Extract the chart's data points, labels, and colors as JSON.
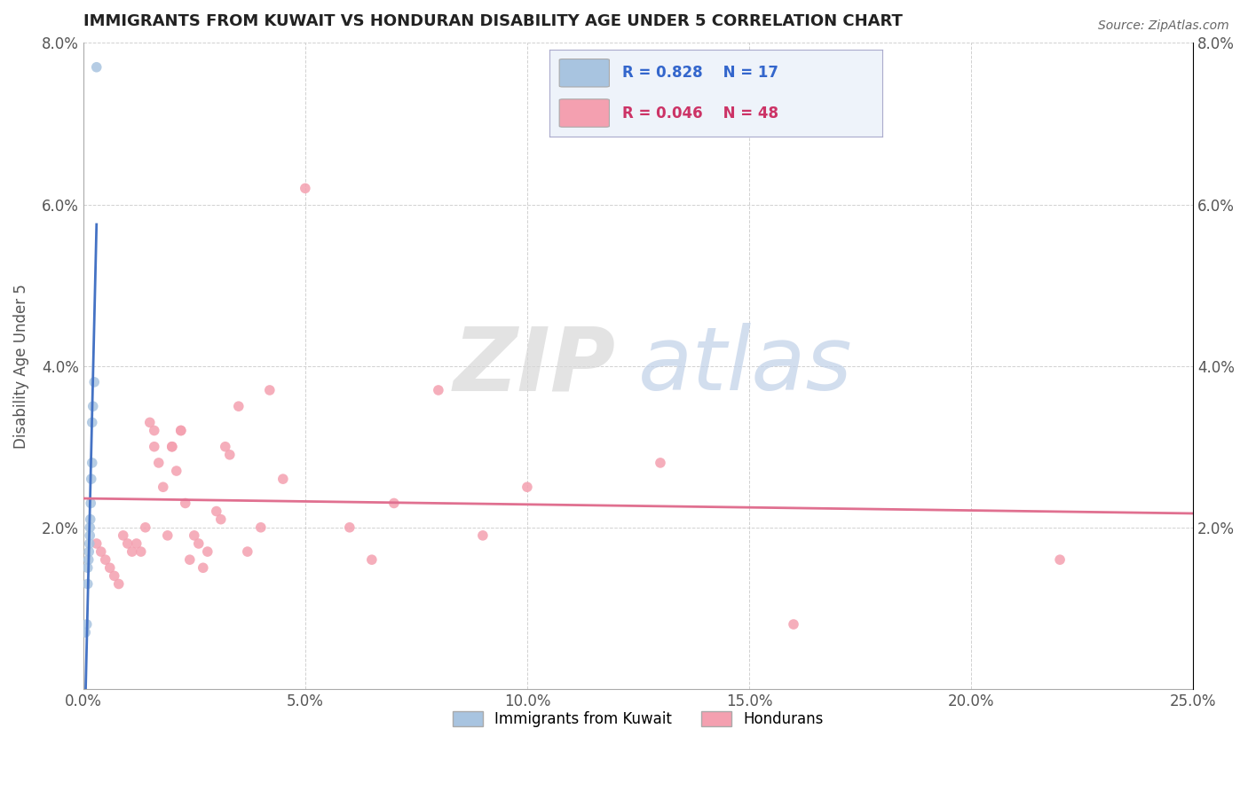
{
  "title": "IMMIGRANTS FROM KUWAIT VS HONDURAN DISABILITY AGE UNDER 5 CORRELATION CHART",
  "source": "Source: ZipAtlas.com",
  "ylabel": "Disability Age Under 5",
  "xmin": 0.0,
  "xmax": 0.25,
  "ymin": 0.0,
  "ymax": 0.08,
  "xticks": [
    0.0,
    0.05,
    0.1,
    0.15,
    0.2,
    0.25
  ],
  "xticklabels": [
    "0.0%",
    "5.0%",
    "10.0%",
    "15.0%",
    "20.0%",
    "25.0%"
  ],
  "yticks": [
    0.0,
    0.02,
    0.04,
    0.06,
    0.08
  ],
  "yticklabels_left": [
    "",
    "2.0%",
    "4.0%",
    "6.0%",
    "8.0%"
  ],
  "yticklabels_right": [
    "",
    "2.0%",
    "4.0%",
    "6.0%",
    "8.0%"
  ],
  "kuwait_R": 0.828,
  "kuwait_N": 17,
  "honduran_R": 0.046,
  "honduran_N": 48,
  "kuwait_color": "#a8c4e0",
  "honduran_color": "#f4a0b0",
  "kuwait_line_color": "#4472c4",
  "honduran_line_color": "#e07090",
  "kuwait_x": [
    0.0005,
    0.0008,
    0.001,
    0.001,
    0.0012,
    0.0013,
    0.0014,
    0.0015,
    0.0015,
    0.0016,
    0.0017,
    0.0018,
    0.002,
    0.002,
    0.0022,
    0.0025,
    0.003
  ],
  "kuwait_y": [
    0.007,
    0.008,
    0.013,
    0.015,
    0.016,
    0.017,
    0.018,
    0.019,
    0.02,
    0.021,
    0.023,
    0.026,
    0.028,
    0.033,
    0.035,
    0.038,
    0.077
  ],
  "honduran_x": [
    0.003,
    0.004,
    0.005,
    0.006,
    0.007,
    0.008,
    0.009,
    0.01,
    0.011,
    0.012,
    0.013,
    0.014,
    0.015,
    0.016,
    0.016,
    0.017,
    0.018,
    0.019,
    0.02,
    0.02,
    0.021,
    0.022,
    0.022,
    0.023,
    0.024,
    0.025,
    0.026,
    0.027,
    0.028,
    0.03,
    0.031,
    0.032,
    0.033,
    0.035,
    0.037,
    0.04,
    0.042,
    0.045,
    0.05,
    0.06,
    0.065,
    0.07,
    0.08,
    0.09,
    0.1,
    0.13,
    0.16,
    0.22
  ],
  "honduran_y": [
    0.018,
    0.017,
    0.016,
    0.015,
    0.014,
    0.013,
    0.019,
    0.018,
    0.017,
    0.018,
    0.017,
    0.02,
    0.033,
    0.032,
    0.03,
    0.028,
    0.025,
    0.019,
    0.03,
    0.03,
    0.027,
    0.032,
    0.032,
    0.023,
    0.016,
    0.019,
    0.018,
    0.015,
    0.017,
    0.022,
    0.021,
    0.03,
    0.029,
    0.035,
    0.017,
    0.02,
    0.037,
    0.026,
    0.062,
    0.02,
    0.016,
    0.023,
    0.037,
    0.019,
    0.025,
    0.028,
    0.008,
    0.016
  ],
  "legend_facecolor": "#eef3fa",
  "legend_edgecolor": "#aaaacc",
  "kuwait_text_color": "#3366cc",
  "honduran_text_color": "#cc3366",
  "tick_color": "#555555",
  "grid_color": "#cccccc",
  "watermark_zip_color": "#d8d8d8",
  "watermark_atlas_color": "#c0d0e8"
}
